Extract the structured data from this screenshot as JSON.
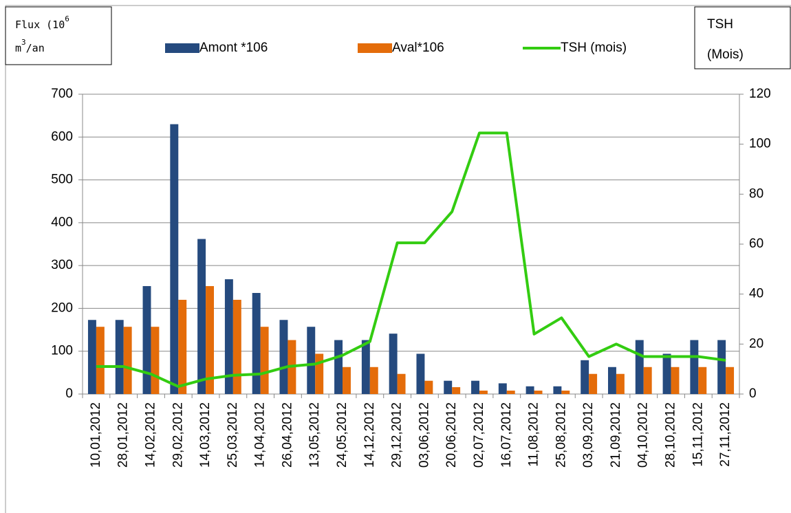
{
  "chart_data": {
    "type": "bar_line",
    "ylabel": {
      "line1": "Flux (10",
      "sup1": "6",
      "line2a": "m",
      "sup2": "3",
      "line2b": "/an"
    },
    "y2label": {
      "line1": "TSH",
      "line2": "(Mois)"
    },
    "categories": [
      "10,01,2012",
      "28,01,2012",
      "14,02,2012",
      "29,02,2012",
      "14,03,2012",
      "25,03,2012",
      "14,04,2012",
      "26,04,2012",
      "13,05,2012",
      "24,05,2012",
      "14,12,2012",
      "29,12,2012",
      "03,06,2012",
      "20,06,2012",
      "02,07,2012",
      "16,07,2012",
      "11,08,2012",
      "25,08,2012",
      "03,09,2012",
      "21,09,2012",
      "04,10,2012",
      "28,10,2012",
      "15,11,2012",
      "27,11,2012"
    ],
    "series": [
      {
        "name": "Amont *106",
        "color": "#254a7e",
        "kind": "bar",
        "values": [
          173,
          173,
          252,
          630,
          362,
          268,
          236,
          173,
          157,
          126,
          126,
          141,
          94,
          31,
          31,
          25,
          18,
          18,
          79,
          63,
          126,
          94,
          126,
          126
        ]
      },
      {
        "name": "Aval*106",
        "color": "#e46c0a",
        "kind": "bar",
        "values": [
          157,
          157,
          157,
          220,
          252,
          220,
          157,
          126,
          94,
          63,
          63,
          47,
          31,
          16,
          8,
          8,
          8,
          8,
          47,
          47,
          63,
          63,
          63,
          63
        ]
      },
      {
        "name": "TSH (mois)",
        "color": "#33cc11",
        "kind": "line",
        "axis": "y2",
        "values": [
          11,
          11,
          8,
          3,
          6,
          7.5,
          8,
          11,
          12,
          15.5,
          21,
          60.5,
          60.5,
          73,
          104.5,
          104.5,
          24,
          30.5,
          15,
          20,
          15,
          15,
          15,
          13.5
        ]
      }
    ],
    "ylim": [
      0,
      700
    ],
    "yticks": [
      0,
      100,
      200,
      300,
      400,
      500,
      600,
      700
    ],
    "y2lim": [
      0,
      120
    ],
    "y2ticks": [
      0,
      20,
      40,
      60,
      80,
      100,
      120
    ],
    "grid": true
  }
}
